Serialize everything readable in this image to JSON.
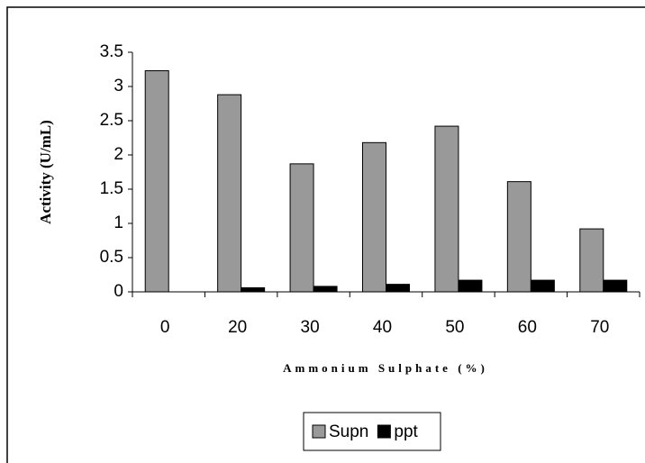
{
  "chart_data": {
    "type": "bar",
    "y_label": "Activity (U/mL)",
    "x_label": "Ammonium Sulphate (%)",
    "categories": [
      "0",
      "20",
      "30",
      "40",
      "50",
      "60",
      "70"
    ],
    "series": [
      {
        "name": "Supn",
        "color": "#999999",
        "values": [
          3.23,
          2.88,
          1.87,
          2.18,
          2.42,
          1.61,
          0.92
        ]
      },
      {
        "name": "ppt",
        "color": "#000000",
        "values": [
          0,
          0.06,
          0.08,
          0.11,
          0.17,
          0.17,
          0.17
        ]
      }
    ],
    "ylim": [
      0,
      3.5
    ],
    "yticks": [
      0,
      0.5,
      1,
      1.5,
      2,
      2.5,
      3,
      3.5
    ],
    "grid": false,
    "legend": "bottom"
  }
}
